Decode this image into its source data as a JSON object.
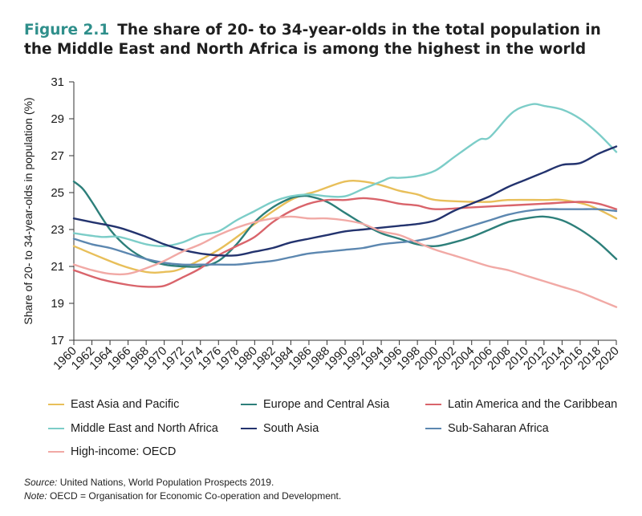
{
  "title": {
    "figure_label": "Figure 2.1",
    "text_line1": "The share of 20- to 34-year-olds in the total population in",
    "text_line2": "the Middle East and North Africa is among the highest in the world"
  },
  "notes": {
    "source_label": "Source:",
    "source_text": "United Nations, World Population Prospects 2019.",
    "note_label": "Note:",
    "note_text": "OECD = Organisation for Economic Co-operation and Development."
  },
  "chart_data": {
    "type": "line",
    "ylabel": "Share of 20- to 34-year-olds in population (%)",
    "xlabel": "",
    "ylim": [
      17,
      31
    ],
    "yticks": [
      17,
      19,
      21,
      23,
      25,
      27,
      29,
      31
    ],
    "xlim": [
      1960,
      2020
    ],
    "xticks": [
      "1960",
      "1962",
      "1964",
      "1966",
      "1968",
      "1970",
      "1972",
      "1974",
      "1976",
      "1978",
      "1980",
      "1982",
      "1984",
      "1986",
      "1988",
      "1990",
      "1992",
      "1994",
      "1996",
      "1998",
      "2000",
      "2002",
      "2004",
      "2006",
      "2008",
      "2010",
      "2012",
      "2014",
      "2016",
      "2018",
      "2020"
    ],
    "grid": false,
    "legend_position": "bottom",
    "series": [
      {
        "name": "East Asia and Pacific",
        "color": "#e8bf5a",
        "points": [
          [
            1960,
            22.1
          ],
          [
            1965,
            21.1
          ],
          [
            1968,
            20.7
          ],
          [
            1970,
            20.7
          ],
          [
            1972,
            20.9
          ],
          [
            1976,
            21.9
          ],
          [
            1980,
            23.3
          ],
          [
            1984,
            24.6
          ],
          [
            1987,
            25.1
          ],
          [
            1990,
            25.6
          ],
          [
            1992,
            25.6
          ],
          [
            1994,
            25.4
          ],
          [
            1996,
            25.1
          ],
          [
            1998,
            24.9
          ],
          [
            2000,
            24.6
          ],
          [
            2004,
            24.5
          ],
          [
            2006,
            24.5
          ],
          [
            2008,
            24.6
          ],
          [
            2012,
            24.6
          ],
          [
            2014,
            24.6
          ],
          [
            2017,
            24.3
          ],
          [
            2020,
            23.6
          ]
        ]
      },
      {
        "name": "Europe and Central Asia",
        "color": "#2d7f7a",
        "points": [
          [
            1960,
            25.6
          ],
          [
            1961,
            25.2
          ],
          [
            1962,
            24.5
          ],
          [
            1964,
            23.0
          ],
          [
            1966,
            22.0
          ],
          [
            1968,
            21.4
          ],
          [
            1970,
            21.1
          ],
          [
            1972,
            21.0
          ],
          [
            1974,
            21.0
          ],
          [
            1976,
            21.3
          ],
          [
            1978,
            22.2
          ],
          [
            1980,
            23.4
          ],
          [
            1982,
            24.2
          ],
          [
            1984,
            24.7
          ],
          [
            1985,
            24.8
          ],
          [
            1986,
            24.8
          ],
          [
            1988,
            24.5
          ],
          [
            1990,
            23.9
          ],
          [
            1992,
            23.3
          ],
          [
            1994,
            22.8
          ],
          [
            1996,
            22.5
          ],
          [
            1998,
            22.2
          ],
          [
            2000,
            22.1
          ],
          [
            2002,
            22.3
          ],
          [
            2004,
            22.6
          ],
          [
            2006,
            23.0
          ],
          [
            2008,
            23.4
          ],
          [
            2010,
            23.6
          ],
          [
            2012,
            23.7
          ],
          [
            2014,
            23.5
          ],
          [
            2016,
            23.0
          ],
          [
            2018,
            22.3
          ],
          [
            2020,
            21.4
          ]
        ]
      },
      {
        "name": "Latin America and the Caribbean",
        "color": "#d9646b",
        "points": [
          [
            1960,
            20.8
          ],
          [
            1963,
            20.3
          ],
          [
            1966,
            20.0
          ],
          [
            1968,
            19.9
          ],
          [
            1970,
            19.95
          ],
          [
            1972,
            20.4
          ],
          [
            1974,
            20.9
          ],
          [
            1976,
            21.6
          ],
          [
            1978,
            22.1
          ],
          [
            1980,
            22.6
          ],
          [
            1982,
            23.4
          ],
          [
            1984,
            24.0
          ],
          [
            1986,
            24.4
          ],
          [
            1988,
            24.6
          ],
          [
            1990,
            24.6
          ],
          [
            1992,
            24.7
          ],
          [
            1994,
            24.6
          ],
          [
            1996,
            24.4
          ],
          [
            1998,
            24.3
          ],
          [
            2000,
            24.1
          ],
          [
            2004,
            24.2
          ],
          [
            2008,
            24.3
          ],
          [
            2012,
            24.4
          ],
          [
            2016,
            24.5
          ],
          [
            2018,
            24.4
          ],
          [
            2020,
            24.1
          ]
        ]
      },
      {
        "name": "Middle East and North Africa",
        "color": "#7ccdc8",
        "points": [
          [
            1960,
            22.8
          ],
          [
            1963,
            22.6
          ],
          [
            1965,
            22.6
          ],
          [
            1968,
            22.2
          ],
          [
            1970,
            22.1
          ],
          [
            1972,
            22.3
          ],
          [
            1974,
            22.7
          ],
          [
            1976,
            22.9
          ],
          [
            1978,
            23.5
          ],
          [
            1980,
            24.0
          ],
          [
            1982,
            24.5
          ],
          [
            1984,
            24.8
          ],
          [
            1986,
            24.9
          ],
          [
            1988,
            24.8
          ],
          [
            1990,
            24.8
          ],
          [
            1992,
            25.2
          ],
          [
            1994,
            25.6
          ],
          [
            1995,
            25.8
          ],
          [
            1996,
            25.8
          ],
          [
            1998,
            25.9
          ],
          [
            2000,
            26.2
          ],
          [
            2002,
            26.9
          ],
          [
            2004,
            27.6
          ],
          [
            2005,
            27.9
          ],
          [
            2006,
            28.0
          ],
          [
            2008,
            29.1
          ],
          [
            2009,
            29.5
          ],
          [
            2010,
            29.7
          ],
          [
            2011,
            29.8
          ],
          [
            2012,
            29.7
          ],
          [
            2014,
            29.5
          ],
          [
            2016,
            29.0
          ],
          [
            2018,
            28.2
          ],
          [
            2020,
            27.2
          ]
        ]
      },
      {
        "name": "South Asia",
        "color": "#23336e",
        "points": [
          [
            1960,
            23.6
          ],
          [
            1962,
            23.4
          ],
          [
            1965,
            23.1
          ],
          [
            1968,
            22.6
          ],
          [
            1970,
            22.2
          ],
          [
            1972,
            21.9
          ],
          [
            1974,
            21.7
          ],
          [
            1976,
            21.6
          ],
          [
            1978,
            21.6
          ],
          [
            1980,
            21.8
          ],
          [
            1982,
            22.0
          ],
          [
            1984,
            22.3
          ],
          [
            1986,
            22.5
          ],
          [
            1988,
            22.7
          ],
          [
            1990,
            22.9
          ],
          [
            1992,
            23.0
          ],
          [
            1994,
            23.1
          ],
          [
            1996,
            23.2
          ],
          [
            1998,
            23.3
          ],
          [
            2000,
            23.5
          ],
          [
            2002,
            24.0
          ],
          [
            2004,
            24.4
          ],
          [
            2006,
            24.8
          ],
          [
            2008,
            25.3
          ],
          [
            2010,
            25.7
          ],
          [
            2012,
            26.1
          ],
          [
            2014,
            26.5
          ],
          [
            2016,
            26.6
          ],
          [
            2018,
            27.1
          ],
          [
            2020,
            27.5
          ]
        ]
      },
      {
        "name": "Sub-Saharan Africa",
        "color": "#5c87b0",
        "points": [
          [
            1960,
            22.5
          ],
          [
            1962,
            22.2
          ],
          [
            1964,
            22.0
          ],
          [
            1966,
            21.7
          ],
          [
            1968,
            21.4
          ],
          [
            1970,
            21.2
          ],
          [
            1972,
            21.1
          ],
          [
            1974,
            21.1
          ],
          [
            1976,
            21.1
          ],
          [
            1978,
            21.1
          ],
          [
            1980,
            21.2
          ],
          [
            1982,
            21.3
          ],
          [
            1984,
            21.5
          ],
          [
            1986,
            21.7
          ],
          [
            1988,
            21.8
          ],
          [
            1990,
            21.9
          ],
          [
            1992,
            22.0
          ],
          [
            1994,
            22.2
          ],
          [
            1996,
            22.3
          ],
          [
            1998,
            22.4
          ],
          [
            2000,
            22.6
          ],
          [
            2002,
            22.9
          ],
          [
            2004,
            23.2
          ],
          [
            2006,
            23.5
          ],
          [
            2008,
            23.8
          ],
          [
            2010,
            24.0
          ],
          [
            2012,
            24.1
          ],
          [
            2014,
            24.1
          ],
          [
            2016,
            24.1
          ],
          [
            2018,
            24.1
          ],
          [
            2020,
            24.0
          ]
        ]
      },
      {
        "name": "High-income: OECD",
        "color": "#f1a9a5",
        "points": [
          [
            1960,
            21.1
          ],
          [
            1962,
            20.8
          ],
          [
            1964,
            20.6
          ],
          [
            1966,
            20.6
          ],
          [
            1968,
            20.9
          ],
          [
            1970,
            21.3
          ],
          [
            1972,
            21.8
          ],
          [
            1974,
            22.2
          ],
          [
            1976,
            22.7
          ],
          [
            1978,
            23.1
          ],
          [
            1980,
            23.4
          ],
          [
            1982,
            23.6
          ],
          [
            1984,
            23.7
          ],
          [
            1986,
            23.6
          ],
          [
            1988,
            23.6
          ],
          [
            1990,
            23.5
          ],
          [
            1992,
            23.3
          ],
          [
            1994,
            22.9
          ],
          [
            1996,
            22.7
          ],
          [
            1998,
            22.3
          ],
          [
            2000,
            21.9
          ],
          [
            2002,
            21.6
          ],
          [
            2004,
            21.3
          ],
          [
            2006,
            21.0
          ],
          [
            2008,
            20.8
          ],
          [
            2010,
            20.5
          ],
          [
            2012,
            20.2
          ],
          [
            2014,
            19.9
          ],
          [
            2016,
            19.6
          ],
          [
            2018,
            19.2
          ],
          [
            2020,
            18.8
          ]
        ]
      }
    ]
  }
}
